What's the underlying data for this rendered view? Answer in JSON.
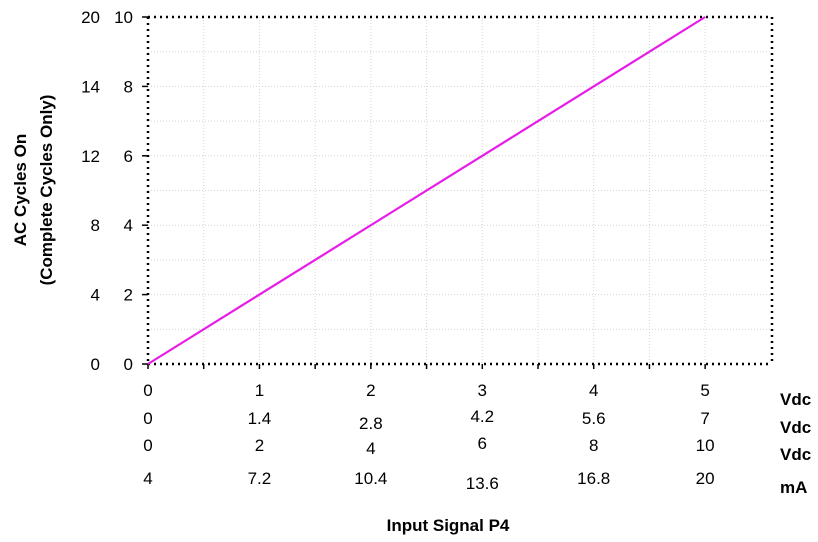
{
  "chart_data": {
    "type": "line",
    "xlabel": "Input Signal P4",
    "ylabel_lines": [
      "AC Cycles On",
      "(Complete Cycles Only)"
    ],
    "grid": true,
    "x_scales": [
      {
        "ticks": [
          0,
          1,
          2,
          3,
          4,
          5
        ],
        "labels": [
          "0",
          "1",
          "2",
          "3",
          "4",
          "5"
        ],
        "unit": "Vdc"
      },
      {
        "ticks": [
          0,
          1.4,
          2.8,
          4.2,
          5.6,
          7
        ],
        "labels": [
          "0",
          "1.4",
          "2.8",
          "4.2",
          "5.6",
          "7"
        ],
        "unit": "Vdc"
      },
      {
        "ticks": [
          0,
          2,
          4,
          6,
          8,
          10
        ],
        "labels": [
          "0",
          "2",
          "4",
          "6",
          "8",
          "10"
        ],
        "unit": "Vdc"
      },
      {
        "ticks": [
          4,
          7.2,
          10.4,
          13.6,
          16.8,
          20
        ],
        "labels": [
          "4",
          "7.2",
          "10.4",
          "13.6",
          "16.8",
          "20"
        ],
        "unit": "mA"
      }
    ],
    "y_scales": [
      {
        "ticks": [
          0,
          4,
          8,
          12,
          14,
          20
        ],
        "labels": [
          "0",
          "4",
          "8",
          "12",
          "14",
          "20"
        ]
      },
      {
        "ticks": [
          0,
          2,
          4,
          6,
          8,
          10
        ],
        "labels": [
          "0",
          "2",
          "4",
          "6",
          "8",
          "10"
        ]
      }
    ],
    "xlim": [
      0,
      5.6
    ],
    "ylim": [
      0,
      10
    ],
    "series": [
      {
        "x": [
          0,
          5
        ],
        "y": [
          0,
          10
        ],
        "color": "#e81ce8"
      }
    ]
  }
}
